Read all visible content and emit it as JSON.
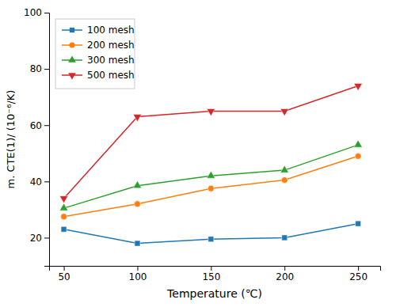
{
  "chart_data": {
    "type": "line",
    "x": [
      50,
      100,
      150,
      200,
      250
    ],
    "series": [
      {
        "name": "100 mesh",
        "marker": "square",
        "values": [
          23,
          18,
          19.5,
          20,
          25
        ]
      },
      {
        "name": "200 mesh",
        "marker": "circle",
        "values": [
          27.5,
          32,
          37.5,
          40.5,
          49
        ]
      },
      {
        "name": "300 mesh",
        "marker": "triangle-up",
        "values": [
          30.5,
          38.5,
          42,
          44,
          53
        ]
      },
      {
        "name": "500 mesh",
        "marker": "triangle-down",
        "values": [
          34,
          63,
          65,
          65,
          74
        ]
      }
    ],
    "x_label": "Temperature (℃)",
    "y_label": "m. CTE(1)/ (10⁻⁶/K)",
    "xlim": [
      40,
      265
    ],
    "xticks": [
      50,
      100,
      150,
      200,
      250
    ],
    "ylim": [
      10,
      100
    ],
    "yticks": [
      20,
      40,
      60,
      80,
      100
    ],
    "grid": false,
    "legend": "upper left"
  }
}
